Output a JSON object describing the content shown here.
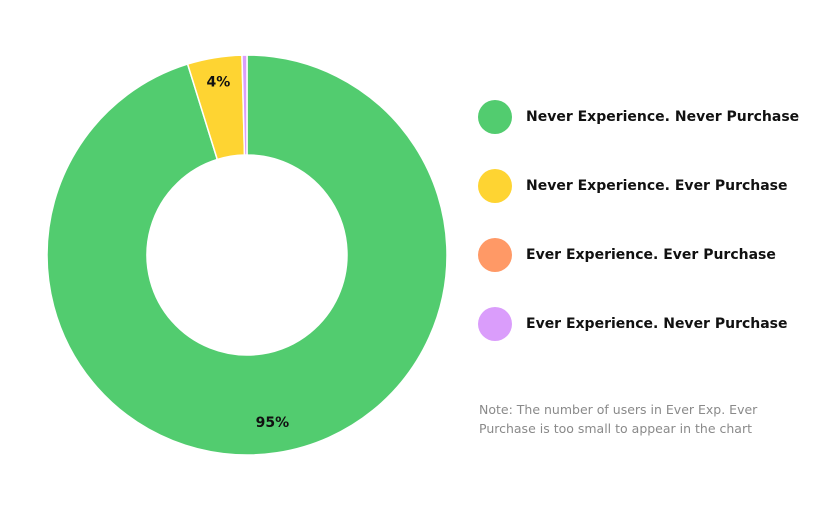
{
  "chart_data": {
    "type": "pie",
    "variant": "donut",
    "categories": [
      "Never Experience. Never Purchase",
      "Never Experience. Ever Purchase",
      "Ever Experience. Ever Purchase",
      "Ever Experience. Never Purchase"
    ],
    "values": [
      95.2,
      4.4,
      0.0,
      0.4
    ],
    "colors": [
      "#52cc6f",
      "#fed432",
      "#ff9966",
      "#da9dfb"
    ],
    "data_labels": [
      "95%",
      "4%",
      "",
      ""
    ],
    "legend_position": "right",
    "note": "Note: The number of users in Ever Exp. Ever Purchase is too small to appear in the chart"
  }
}
